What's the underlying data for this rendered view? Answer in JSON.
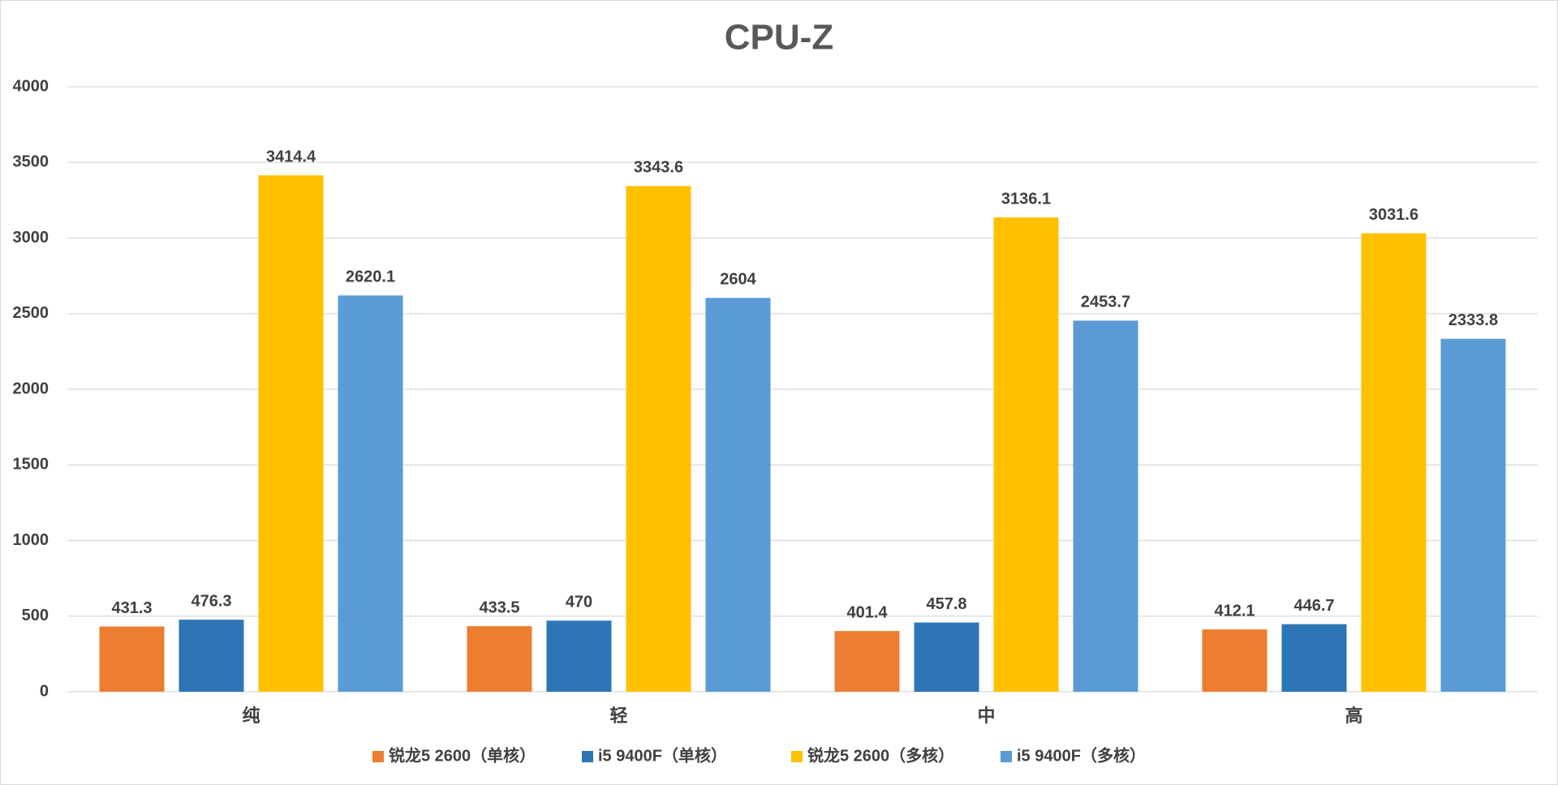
{
  "chart_data": {
    "type": "bar",
    "title": "CPU-Z",
    "categories": [
      "纯",
      "轻",
      "中",
      "高"
    ],
    "series": [
      {
        "name": "锐龙5 2600（单核）",
        "color": "#ED7D31",
        "values": [
          431.3,
          433.5,
          401.4,
          412.1
        ]
      },
      {
        "name": "i5 9400F（单核）",
        "color": "#2E75B6",
        "values": [
          476.3,
          470,
          457.8,
          446.7
        ]
      },
      {
        "name": "锐龙5 2600（多核）",
        "color": "#FFC000",
        "values": [
          3414.4,
          3343.6,
          3136.1,
          3031.6
        ]
      },
      {
        "name": "i5 9400F（多核）",
        "color": "#5B9BD5",
        "values": [
          2620.1,
          2604,
          2453.7,
          2333.8
        ]
      }
    ],
    "ylim": [
      0,
      4000
    ],
    "yticks": [
      0,
      500,
      1000,
      1500,
      2000,
      2500,
      3000,
      3500,
      4000
    ],
    "grid": true,
    "legend": "bottom"
  }
}
